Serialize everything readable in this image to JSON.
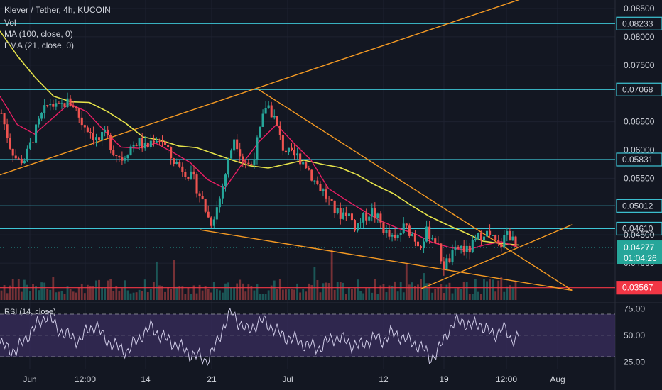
{
  "header": {
    "symbol": "Klever / Tether, 4h, KUCOIN",
    "indicators": [
      "Vol",
      "MA (100, close, 0)",
      "EMA (21, close, 0)"
    ]
  },
  "rsi_label": "RSI (14, close)",
  "colors": {
    "background": "#131722",
    "grid": "#1e2230",
    "up": "#26a69a",
    "down": "#ef5350",
    "ma": "#e6e34a",
    "ema": "#e91e63",
    "trendline": "#f59a23",
    "level": "#3ec6d6",
    "support": "#f23645",
    "rsi": "#d0cce8",
    "rsi_band": "#3a2d5e",
    "axis_text": "#d1d4dc",
    "price_badge": "#26a69a"
  },
  "chart_data": {
    "type": "candlestick",
    "title": "Klever / Tether, 4h, KUCOIN",
    "price_axis": {
      "ticks": [
        "0.08500",
        "0.08000",
        "0.07500",
        "0.06500",
        "0.06000",
        "0.05500",
        "0.04500",
        "0.04000"
      ],
      "range": [
        0.0335,
        0.0865
      ]
    },
    "time_axis": {
      "labels": [
        "Jun",
        "12:00",
        "14",
        "21",
        "Jul",
        "12",
        "19",
        "12:00",
        "Aug"
      ]
    },
    "horizontal_levels": [
      {
        "label": "0.08233",
        "value": 0.08233,
        "kind": "resistance"
      },
      {
        "label": "0.07068",
        "value": 0.07068,
        "kind": "resistance"
      },
      {
        "label": "0.05831",
        "value": 0.05831,
        "kind": "resistance"
      },
      {
        "label": "0.05012",
        "value": 0.05012,
        "kind": "resistance"
      },
      {
        "label": "0.04610",
        "value": 0.0461,
        "kind": "resistance"
      },
      {
        "label": "0.03567",
        "value": 0.03567,
        "kind": "support"
      }
    ],
    "current_price": {
      "value": 0.04277,
      "label": "0.04277",
      "countdown": "01:04:26"
    },
    "price_path": [
      0.0665,
      0.061,
      0.058,
      0.0585,
      0.0625,
      0.066,
      0.0685,
      0.0672,
      0.0685,
      0.068,
      0.0648,
      0.0635,
      0.0615,
      0.0627,
      0.0597,
      0.0585,
      0.0605,
      0.0615,
      0.0603,
      0.0622,
      0.0618,
      0.0588,
      0.0573,
      0.0562,
      0.0545,
      0.051,
      0.047,
      0.0505,
      0.0565,
      0.0625,
      0.0585,
      0.057,
      0.0622,
      0.0685,
      0.0655,
      0.0605,
      0.059,
      0.0588,
      0.0572,
      0.0545,
      0.0528,
      0.0502,
      0.0485,
      0.0492,
      0.0465,
      0.0478,
      0.0493,
      0.0475,
      0.045,
      0.0438,
      0.0463,
      0.0455,
      0.0432,
      0.0456,
      0.0442,
      0.0395,
      0.041,
      0.043,
      0.042,
      0.0437,
      0.0458,
      0.0444,
      0.0426,
      0.0458,
      0.0427
    ],
    "ma100_path": [
      0.081,
      0.0765,
      0.0727,
      0.0695,
      0.0685,
      0.0684,
      0.0668,
      0.0648,
      0.0623,
      0.0617,
      0.0607,
      0.0604,
      0.0593,
      0.0582,
      0.0572,
      0.0568,
      0.0575,
      0.0582,
      0.0575,
      0.0569,
      0.0556,
      0.0538,
      0.0523,
      0.0502,
      0.0483,
      0.0468,
      0.0454,
      0.0439,
      0.0435,
      0.0432
    ],
    "ema21_path": [
      0.0695,
      0.0645,
      0.0628,
      0.0655,
      0.0682,
      0.0668,
      0.0635,
      0.0605,
      0.0603,
      0.0612,
      0.0596,
      0.0578,
      0.0548,
      0.0532,
      0.0575,
      0.0615,
      0.0645,
      0.0612,
      0.0582,
      0.0532,
      0.0512,
      0.0493,
      0.0475,
      0.0462,
      0.0452,
      0.0437,
      0.0428,
      0.0423,
      0.0432,
      0.0438,
      0.0428
    ],
    "trendlines": [
      {
        "name": "upper-ascending",
        "from": [
          0.0,
          0.0556
        ],
        "to": [
          0.845,
          0.0866
        ]
      },
      {
        "name": "descending-resistance",
        "from": [
          0.42,
          0.0707
        ],
        "to": [
          0.93,
          0.0352
        ]
      },
      {
        "name": "lower-descending",
        "from": [
          0.325,
          0.0459
        ],
        "to": [
          0.93,
          0.0352
        ]
      },
      {
        "name": "ascending-support",
        "from": [
          0.685,
          0.0355
        ],
        "to": [
          0.93,
          0.0468
        ]
      }
    ],
    "rsi": {
      "levels": [
        "75.00",
        "50.00",
        "25.00"
      ],
      "range": [
        20,
        80
      ],
      "overbought": 70,
      "oversold": 30,
      "values": [
        42,
        38,
        35,
        45,
        55,
        62,
        70,
        58,
        52,
        48,
        45,
        55,
        60,
        48,
        42,
        38,
        35,
        44,
        52,
        58,
        50,
        46,
        42,
        37,
        32,
        30,
        26,
        40,
        58,
        72,
        62,
        54,
        60,
        64,
        58,
        52,
        48,
        46,
        42,
        40,
        38,
        44,
        48,
        46,
        42,
        40,
        44,
        48,
        45,
        52,
        50,
        46,
        42,
        38,
        28,
        36,
        52,
        62,
        64,
        58,
        62,
        55,
        50,
        58,
        46,
        50
      ]
    }
  }
}
